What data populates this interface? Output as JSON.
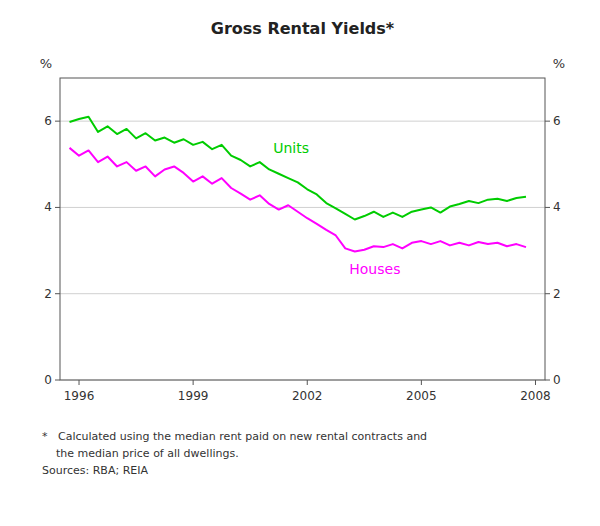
{
  "chart_data": {
    "type": "line",
    "title": "Gross Rental Yields*",
    "ylabel": "%",
    "y2label": "%",
    "footnotes": [
      "*   Calculated using the median rent paid on new rental contracts and",
      "    the median price of all dwellings.",
      "Sources: RBA; REIA"
    ],
    "x": [
      1995.75,
      1996.0,
      1996.25,
      1996.5,
      1996.75,
      1997.0,
      1997.25,
      1997.5,
      1997.75,
      1998.0,
      1998.25,
      1998.5,
      1998.75,
      1999.0,
      1999.25,
      1999.5,
      1999.75,
      2000.0,
      2000.25,
      2000.5,
      2000.75,
      2001.0,
      2001.25,
      2001.5,
      2001.75,
      2002.0,
      2002.25,
      2002.5,
      2002.75,
      2003.0,
      2003.25,
      2003.5,
      2003.75,
      2004.0,
      2004.25,
      2004.5,
      2004.75,
      2005.0,
      2005.25,
      2005.5,
      2005.75,
      2006.0,
      2006.25,
      2006.5,
      2006.75,
      2007.0,
      2007.25,
      2007.5,
      2007.75
    ],
    "series": [
      {
        "name": "Units",
        "color": "#00cc00",
        "values": [
          5.98,
          6.05,
          6.1,
          5.75,
          5.88,
          5.7,
          5.82,
          5.6,
          5.72,
          5.55,
          5.62,
          5.5,
          5.58,
          5.45,
          5.52,
          5.35,
          5.45,
          5.2,
          5.1,
          4.95,
          5.05,
          4.88,
          4.78,
          4.68,
          4.58,
          4.42,
          4.3,
          4.1,
          3.98,
          3.85,
          3.72,
          3.8,
          3.9,
          3.78,
          3.88,
          3.78,
          3.9,
          3.95,
          4.0,
          3.88,
          4.02,
          4.08,
          4.15,
          4.1,
          4.18,
          4.2,
          4.15,
          4.22,
          4.25
        ]
      },
      {
        "name": "Houses",
        "color": "#ff00ff",
        "values": [
          5.38,
          5.2,
          5.32,
          5.05,
          5.18,
          4.95,
          5.05,
          4.85,
          4.95,
          4.72,
          4.88,
          4.95,
          4.8,
          4.6,
          4.72,
          4.55,
          4.68,
          4.45,
          4.32,
          4.18,
          4.28,
          4.08,
          3.95,
          4.05,
          3.9,
          3.75,
          3.62,
          3.48,
          3.35,
          3.05,
          2.98,
          3.02,
          3.1,
          3.08,
          3.15,
          3.05,
          3.18,
          3.22,
          3.15,
          3.22,
          3.12,
          3.18,
          3.12,
          3.2,
          3.15,
          3.18,
          3.1,
          3.15,
          3.08
        ]
      }
    ],
    "xlim": [
      1995.5,
      2008.25
    ],
    "xticks": [
      1996,
      1999,
      2002,
      2005,
      2008
    ],
    "ylim": [
      0,
      7
    ],
    "yticks": [
      0,
      2,
      4,
      6
    ],
    "y2lim": [
      0,
      7
    ],
    "y2ticks": [
      0,
      2,
      4,
      6
    ],
    "grid": "y"
  }
}
